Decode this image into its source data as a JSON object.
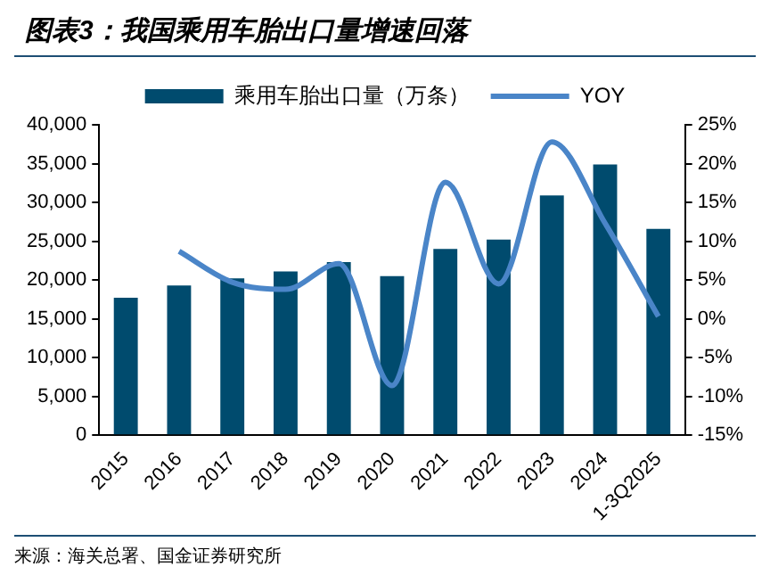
{
  "chart_data": {
    "type": "bar",
    "title": "图表3：我国乘用车胎出口量增速回落",
    "categories": [
      "2015",
      "2016",
      "2017",
      "2018",
      "2019",
      "2020",
      "2021",
      "2022",
      "2023",
      "2024",
      "1-3Q2025"
    ],
    "series": [
      {
        "name": "乘用车胎出口量（万条）",
        "color": "#004b6e",
        "values": [
          17700,
          19300,
          20200,
          21100,
          22300,
          20500,
          24000,
          25200,
          30900,
          34900,
          26600
        ]
      },
      {
        "name": "YOY",
        "type": "line",
        "axis": "y2",
        "color": "#4a85c8",
        "values": [
          null,
          8.7,
          4.7,
          3.8,
          7.1,
          -8.6,
          17.6,
          4.5,
          22.8,
          12.3,
          0.3
        ]
      }
    ],
    "ylim": [
      0,
      40000
    ],
    "yticks": [
      {
        "value": 0,
        "label": "0"
      },
      {
        "value": 5000,
        "label": "5,000"
      },
      {
        "value": 10000,
        "label": "10,000"
      },
      {
        "value": 15000,
        "label": "15,000"
      },
      {
        "value": 20000,
        "label": "20,000"
      },
      {
        "value": 25000,
        "label": "25,000"
      },
      {
        "value": 30000,
        "label": "30,000"
      },
      {
        "value": 35000,
        "label": "35,000"
      },
      {
        "value": 40000,
        "label": "40,000"
      }
    ],
    "y2lim": [
      -15,
      25
    ],
    "y2ticks": [
      {
        "value": -15,
        "label": "-15%"
      },
      {
        "value": -10,
        "label": "-10%"
      },
      {
        "value": -5,
        "label": "-5%"
      },
      {
        "value": 0,
        "label": "0%"
      },
      {
        "value": 5,
        "label": "5%"
      },
      {
        "value": 10,
        "label": "10%"
      },
      {
        "value": 15,
        "label": "15%"
      },
      {
        "value": 20,
        "label": "20%"
      },
      {
        "value": 25,
        "label": "25%"
      }
    ],
    "grid": false,
    "legend": "top",
    "annotations": [
      "来源：海关总署、国金证券研究所"
    ]
  }
}
